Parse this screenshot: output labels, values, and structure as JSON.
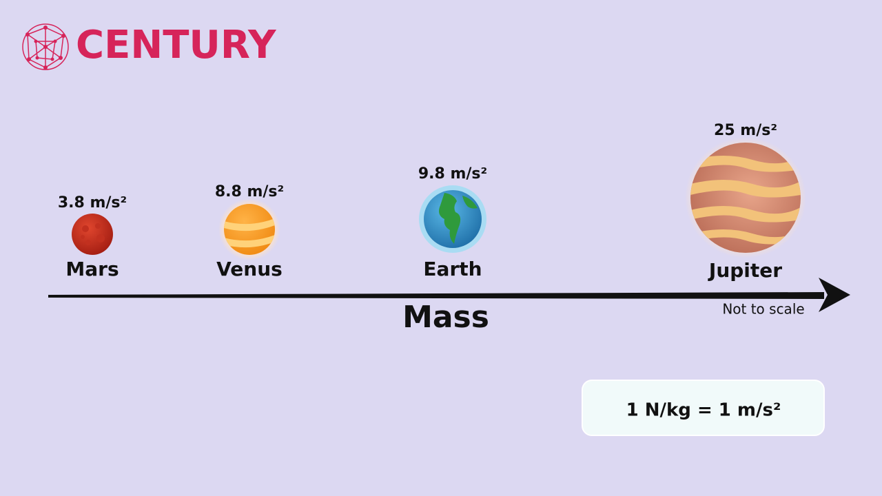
{
  "brand": "CENTURY",
  "planets": [
    {
      "name": "Mars",
      "gravity": "3.8 m/s²"
    },
    {
      "name": "Venus",
      "gravity": "8.8 m/s²"
    },
    {
      "name": "Earth",
      "gravity": "9.8 m/s²"
    },
    {
      "name": "Jupiter",
      "gravity": "25 m/s²"
    }
  ],
  "axis_label": "Mass",
  "note": "Not to scale",
  "equation": "1 N/kg = 1 m/s²"
}
